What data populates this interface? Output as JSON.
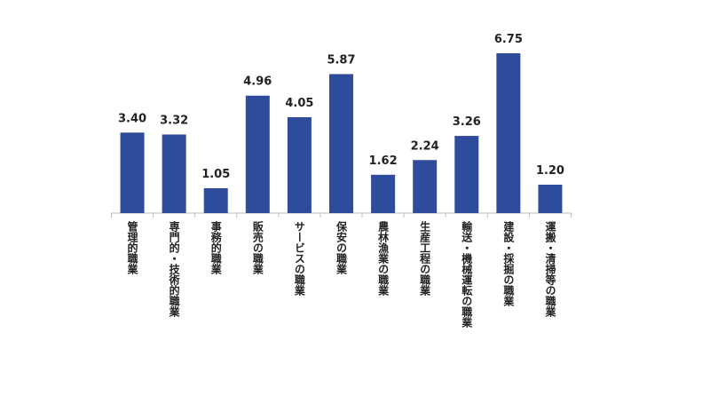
{
  "chart_data": {
    "type": "bar",
    "categories": [
      "管理的職業",
      "専門的・技術的職業",
      "事務的職業",
      "販売の職業",
      "サービスの職業",
      "保安の職業",
      "農林漁業の職業",
      "生産工程の職業",
      "輸送・機械運転の職業",
      "建設・採掘の職業",
      "運搬・清掃等の職業"
    ],
    "values": [
      3.4,
      3.32,
      1.05,
      4.96,
      4.05,
      5.87,
      1.62,
      2.24,
      3.26,
      6.75,
      1.2
    ],
    "value_labels": [
      "3.40",
      "3.32",
      "1.05",
      "4.96",
      "4.05",
      "5.87",
      "1.62",
      "2.24",
      "3.26",
      "6.75",
      "1.20"
    ],
    "color": "#2f4b9b",
    "ylim": [
      0,
      9
    ]
  }
}
